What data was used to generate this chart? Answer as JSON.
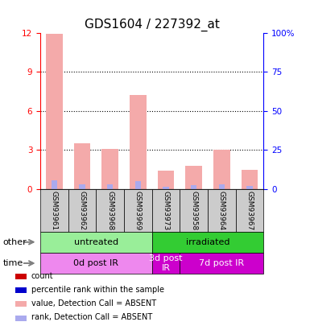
{
  "title": "GDS1604 / 227392_at",
  "samples": [
    "GSM93961",
    "GSM93962",
    "GSM93968",
    "GSM93969",
    "GSM93973",
    "GSM93958",
    "GSM93964",
    "GSM93967"
  ],
  "bar_values": [
    11.9,
    3.5,
    3.1,
    7.2,
    1.4,
    1.8,
    3.0,
    1.5
  ],
  "rank_values": [
    5.7,
    3.1,
    3.1,
    5.1,
    1.7,
    2.3,
    2.8,
    1.8
  ],
  "bar_color_absent": "#F4AAAA",
  "rank_color_absent": "#AAAAEE",
  "ylim_left": [
    0,
    12
  ],
  "ylim_right": [
    0,
    100
  ],
  "yticks_left": [
    0,
    3,
    6,
    9,
    12
  ],
  "ytick_labels_left": [
    "0",
    "3",
    "6",
    "9",
    "12"
  ],
  "yticks_right": [
    0,
    25,
    50,
    75,
    100
  ],
  "ytick_labels_right": [
    "0",
    "25",
    "50",
    "75",
    "100%"
  ],
  "groups_other": [
    {
      "label": "untreated",
      "start": 0,
      "end": 4,
      "color": "#99EE99"
    },
    {
      "label": "irradiated",
      "start": 4,
      "end": 8,
      "color": "#33CC33"
    }
  ],
  "groups_time": [
    {
      "label": "0d post IR",
      "start": 0,
      "end": 4,
      "color": "#EE88EE"
    },
    {
      "label": "3d post\nIR",
      "start": 4,
      "end": 5,
      "color": "#CC00CC"
    },
    {
      "label": "7d post IR",
      "start": 5,
      "end": 8,
      "color": "#CC00CC"
    }
  ],
  "legend_items": [
    {
      "color": "#CC0000",
      "label": "count"
    },
    {
      "color": "#0000CC",
      "label": "percentile rank within the sample"
    },
    {
      "color": "#F4AAAA",
      "label": "value, Detection Call = ABSENT"
    },
    {
      "color": "#AAAAEE",
      "label": "rank, Detection Call = ABSENT"
    }
  ],
  "arrow_label_other": "other",
  "arrow_label_time": "time",
  "title_fontsize": 11,
  "tick_fontsize": 7.5,
  "sample_fontsize": 6.5,
  "legend_fontsize": 7,
  "group_fontsize": 8,
  "bar_width": 0.6,
  "background_color": "#ffffff"
}
